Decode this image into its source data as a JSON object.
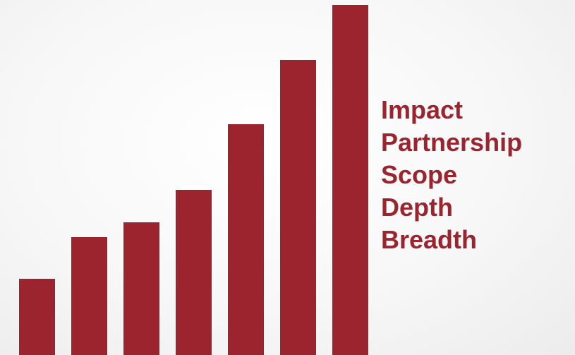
{
  "colors": {
    "accent": "#9b242f"
  },
  "labels": [
    "Impact",
    "Partnership",
    "Scope",
    "Depth",
    "Breadth"
  ],
  "bar_levels": [
    0.215,
    0.333,
    0.374,
    0.466,
    0.65,
    0.832,
    0.986
  ]
}
